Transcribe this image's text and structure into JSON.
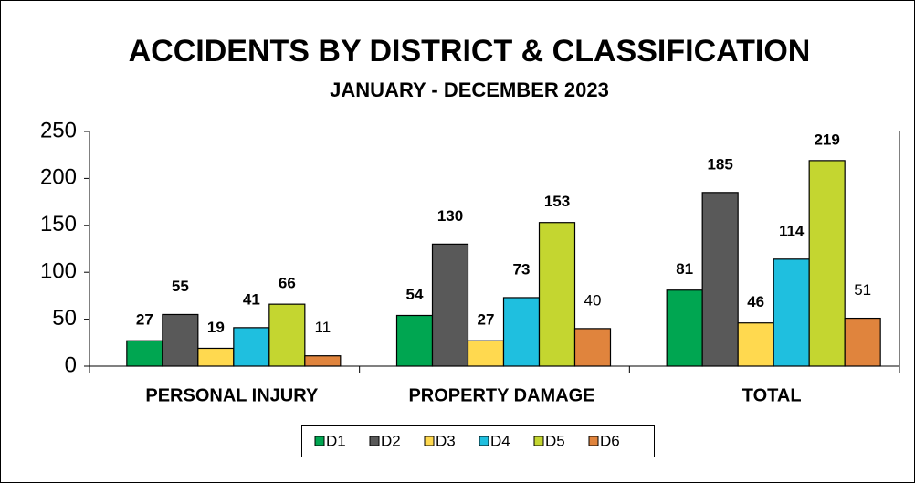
{
  "chart_data": {
    "type": "bar",
    "title": "ACCIDENTS BY DISTRICT & CLASSIFICATION",
    "subtitle": "JANUARY - DECEMBER 2023",
    "categories": [
      "PERSONAL INJURY",
      "PROPERTY DAMAGE",
      "TOTAL"
    ],
    "series": [
      {
        "name": "D1",
        "color": "#00a651",
        "values": [
          27,
          54,
          81
        ]
      },
      {
        "name": "D2",
        "color": "#595959",
        "values": [
          55,
          130,
          185
        ]
      },
      {
        "name": "D3",
        "color": "#ffd94f",
        "values": [
          19,
          27,
          46
        ]
      },
      {
        "name": "D4",
        "color": "#1fbfdf",
        "values": [
          41,
          73,
          114
        ]
      },
      {
        "name": "D5",
        "color": "#c4d630",
        "values": [
          66,
          153,
          219
        ]
      },
      {
        "name": "D6",
        "color": "#e0843d",
        "values": [
          11,
          40,
          51
        ]
      }
    ],
    "ylim": [
      0,
      250
    ],
    "yticks": [
      0,
      50,
      100,
      150,
      200,
      250
    ],
    "legend": "bottom"
  }
}
